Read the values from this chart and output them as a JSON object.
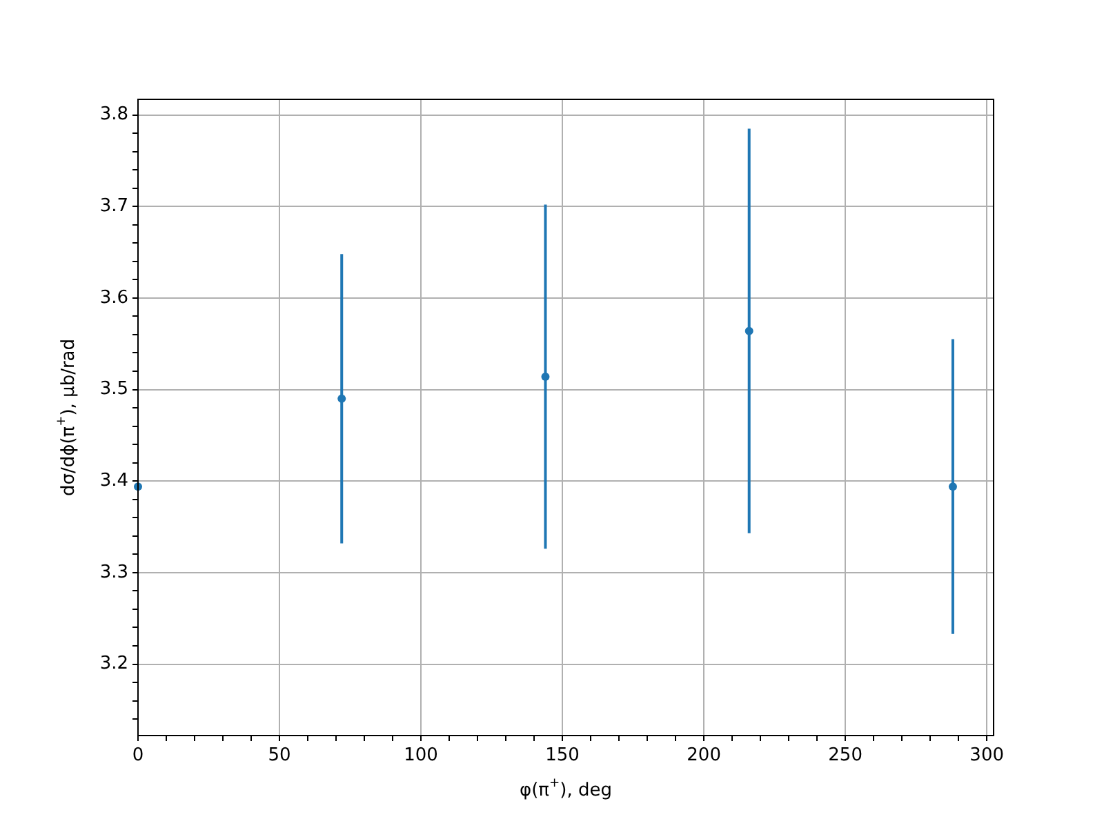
{
  "chart_data": {
    "type": "scatter",
    "xlabel": "φ(π$^{+}$), deg",
    "ylabel": "dσ/dϕ(π$^{+}$), μb/rad",
    "x": [
      0,
      72,
      144,
      216,
      288
    ],
    "series": [
      {
        "color": "#1f77b4",
        "values": [
          3.394,
          3.49,
          3.514,
          3.564,
          3.394
        ],
        "errors": [
          null,
          0.158,
          0.188,
          0.221,
          0.161
        ]
      }
    ],
    "xlim": [
      0,
      302.4
    ],
    "ylim": [
      3.122,
      3.817
    ],
    "xticks": [
      0,
      {
        "value": 10,
        "label": null
      },
      {
        "value": 20,
        "label": null
      },
      {
        "value": 30,
        "label": null
      },
      {
        "value": 40,
        "label": null
      },
      50,
      {
        "value": 60,
        "label": null
      },
      {
        "value": 70,
        "label": null
      },
      {
        "value": 80,
        "label": null
      },
      {
        "value": 90,
        "label": null
      },
      100,
      {
        "value": 110,
        "label": null
      },
      {
        "value": 120,
        "label": null
      },
      {
        "value": 130,
        "label": null
      },
      {
        "value": 140,
        "label": null
      },
      150,
      {
        "value": 160,
        "label": null
      },
      {
        "value": 170,
        "label": null
      },
      {
        "value": 180,
        "label": null
      },
      {
        "value": 190,
        "label": null
      },
      200,
      {
        "value": 210,
        "label": null
      },
      {
        "value": 220,
        "label": null
      },
      {
        "value": 230,
        "label": null
      },
      {
        "value": 240,
        "label": null
      },
      250,
      {
        "value": 260,
        "label": null
      },
      {
        "value": 270,
        "label": null
      },
      {
        "value": 280,
        "label": null
      },
      {
        "value": 290,
        "label": null
      },
      300
    ],
    "yticks": [
      {
        "value": 3.14,
        "label": null
      },
      {
        "value": 3.16,
        "label": null
      },
      {
        "value": 3.18,
        "label": null
      },
      3.2,
      {
        "value": 3.22,
        "label": null
      },
      {
        "value": 3.24,
        "label": null
      },
      {
        "value": 3.26,
        "label": null
      },
      {
        "value": 3.28,
        "label": null
      },
      3.3,
      {
        "value": 3.32,
        "label": null
      },
      {
        "value": 3.34,
        "label": null
      },
      {
        "value": 3.36,
        "label": null
      },
      {
        "value": 3.38,
        "label": null
      },
      3.4,
      {
        "value": 3.42,
        "label": null
      },
      {
        "value": 3.44,
        "label": null
      },
      {
        "value": 3.46,
        "label": null
      },
      {
        "value": 3.48,
        "label": null
      },
      3.5,
      {
        "value": 3.52,
        "label": null
      },
      {
        "value": 3.54,
        "label": null
      },
      {
        "value": 3.56,
        "label": null
      },
      {
        "value": 3.58,
        "label": null
      },
      3.6,
      {
        "value": 3.62,
        "label": null
      },
      {
        "value": 3.64,
        "label": null
      },
      {
        "value": 3.66,
        "label": null
      },
      {
        "value": 3.68,
        "label": null
      },
      3.7,
      {
        "value": 3.72,
        "label": null
      },
      {
        "value": 3.74,
        "label": null
      },
      {
        "value": 3.76,
        "label": null
      },
      {
        "value": 3.78,
        "label": null
      },
      3.8
    ],
    "grid": true,
    "legend": false,
    "marker": "circle"
  }
}
